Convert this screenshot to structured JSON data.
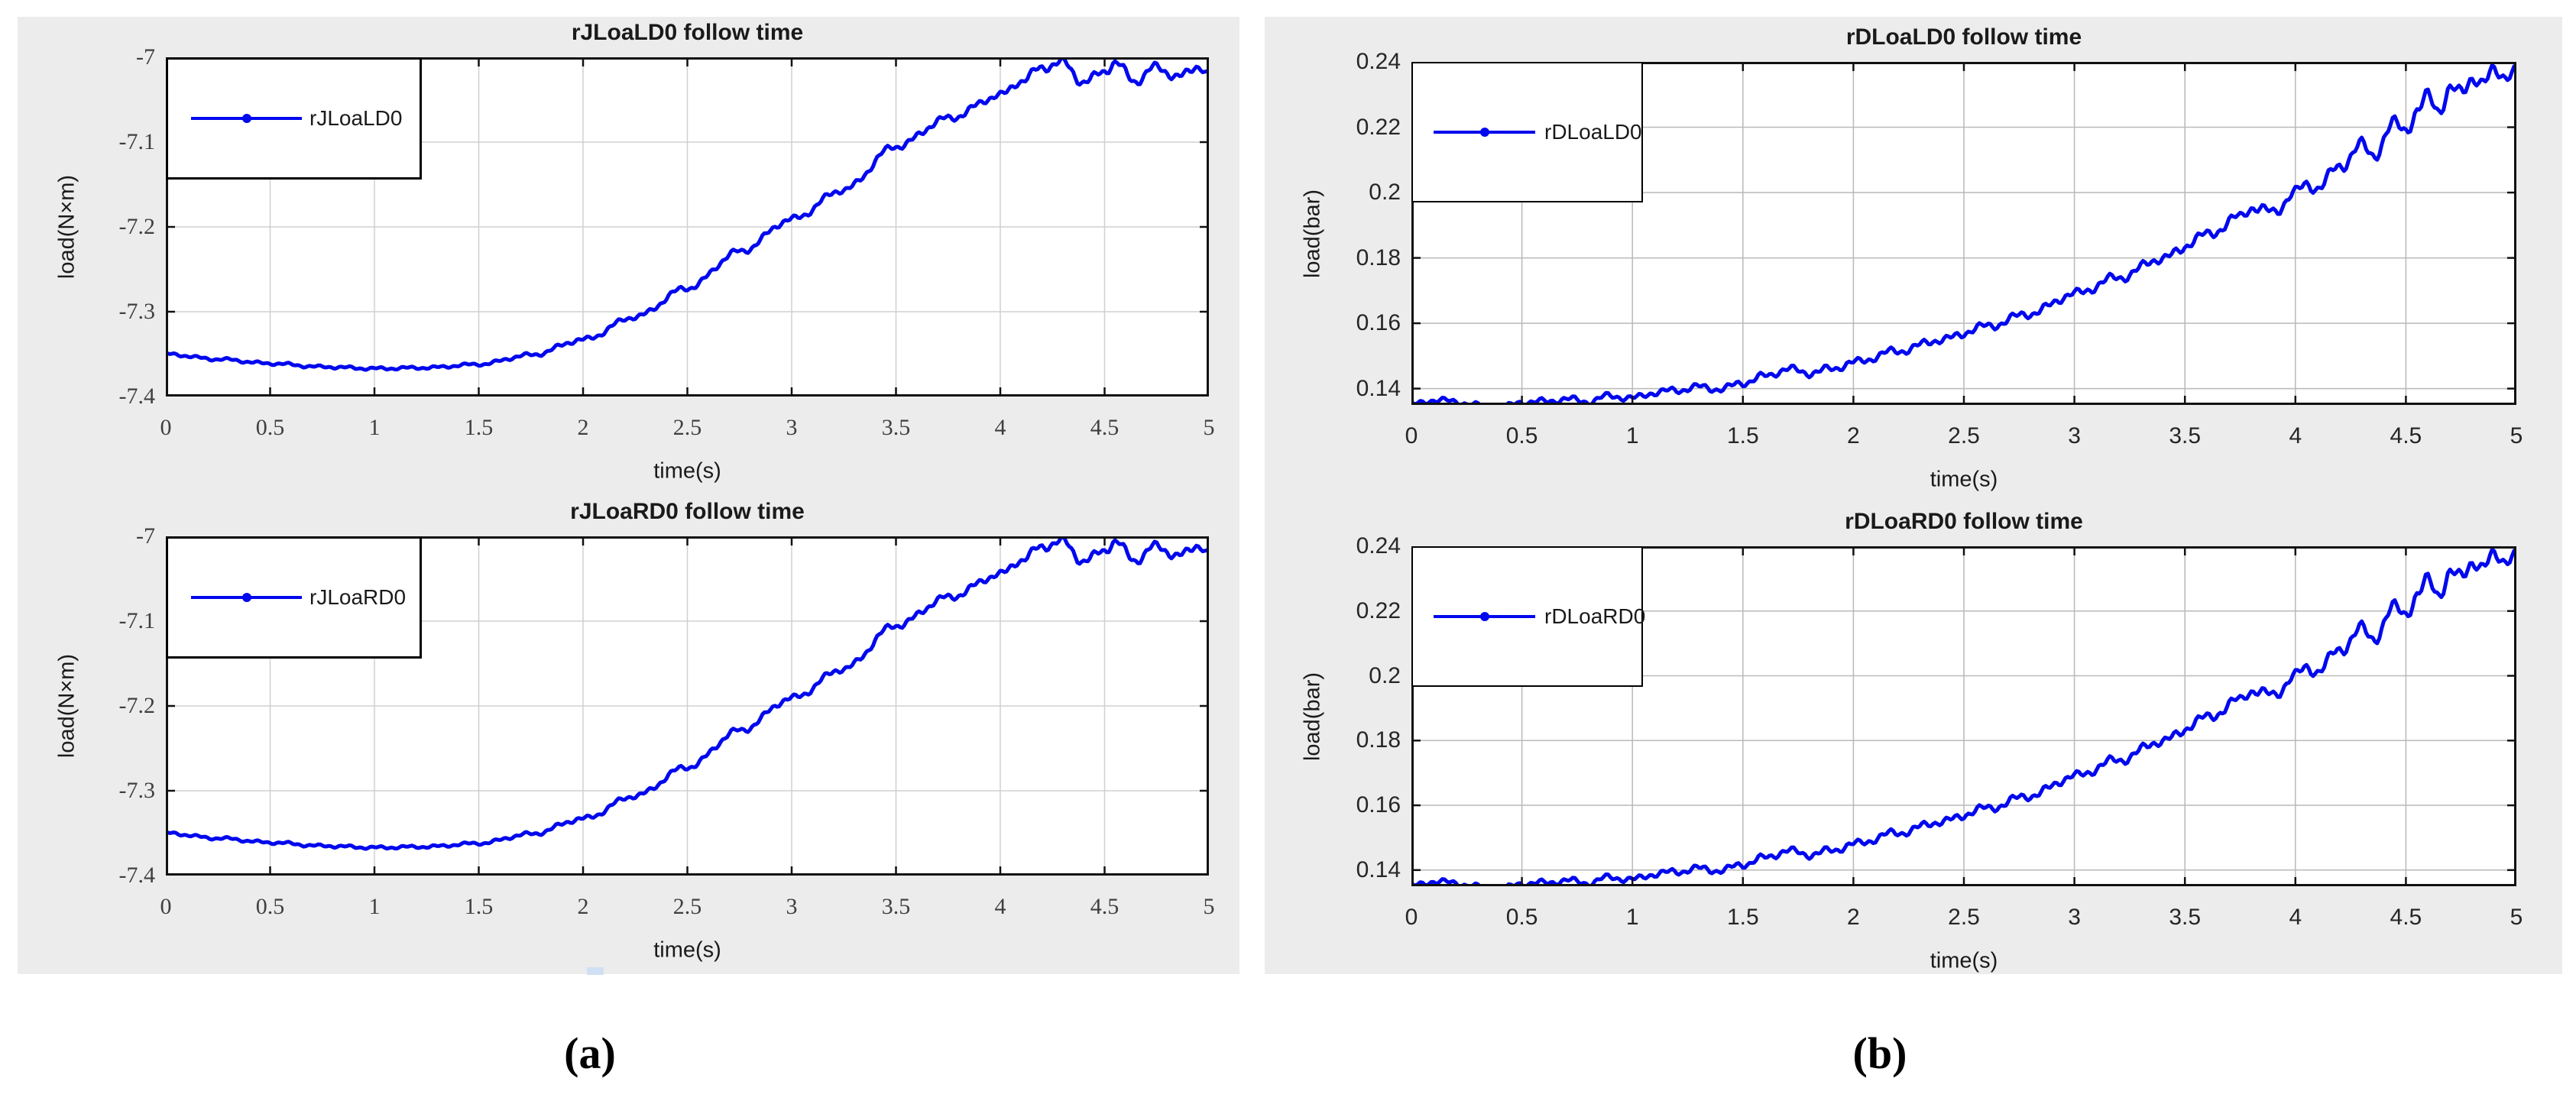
{
  "captions": {
    "a": "(a)",
    "b": "(b)"
  },
  "colors": {
    "panel_bg": "#ececec",
    "page_bg": "#ffffff",
    "axes_border": "#111111",
    "line_blue": "#0008ee",
    "artifact_blue": "#cfe0f2"
  },
  "chart_data": {
    "type": "line",
    "sample_dt": 0.01,
    "legend_position": "top-left",
    "marker": "point",
    "plots": [
      {
        "title": "rJLoaLD0 follow time",
        "legend_label": "rJLoaLD0",
        "xlabel": "time(s)",
        "ylabel": "load(N×m)",
        "xlim": [
          0,
          5
        ],
        "ylim": [
          -7.4,
          -7
        ],
        "xticks": [
          0,
          0.5,
          1,
          1.5,
          2,
          2.5,
          3,
          3.5,
          4,
          4.5,
          5
        ],
        "xtick_labels": [
          "0",
          "0.5",
          "1",
          "1.5",
          "2",
          "2.5",
          "3",
          "3.5",
          "4",
          "4.5",
          "5"
        ],
        "yticks": [
          -7,
          -7.1,
          -7.2,
          -7.3,
          -7.4
        ],
        "ytick_labels": [
          "-7",
          "-7.1",
          "-7.2",
          "-7.3",
          "-7.4"
        ],
        "grid": true,
        "grid_color": "#d0d0d0",
        "tick_font": "serif",
        "line_color": "#0008ee",
        "series": "rJ"
      },
      {
        "title": "rJLoaRD0 follow time",
        "legend_label": "rJLoaRD0",
        "xlabel": "time(s)",
        "ylabel": "load(N×m)",
        "xlim": [
          0,
          5
        ],
        "ylim": [
          -7.4,
          -7
        ],
        "xticks": [
          0,
          0.5,
          1,
          1.5,
          2,
          2.5,
          3,
          3.5,
          4,
          4.5,
          5
        ],
        "xtick_labels": [
          "0",
          "0.5",
          "1",
          "1.5",
          "2",
          "2.5",
          "3",
          "3.5",
          "4",
          "4.5",
          "5"
        ],
        "yticks": [
          -7,
          -7.1,
          -7.2,
          -7.3,
          -7.4
        ],
        "ytick_labels": [
          "-7",
          "-7.1",
          "-7.2",
          "-7.3",
          "-7.4"
        ],
        "grid": true,
        "grid_color": "#d0d0d0",
        "tick_font": "serif",
        "line_color": "#0008ee",
        "series": "rJ"
      },
      {
        "title": "rDLoaLD0 follow time",
        "legend_label": "rDLoaLD0",
        "xlabel": "time(s)",
        "ylabel": "load(bar)",
        "xlim": [
          0,
          5
        ],
        "ylim": [
          0.135,
          0.24
        ],
        "xticks": [
          0,
          0.5,
          1,
          1.5,
          2,
          2.5,
          3,
          3.5,
          4,
          4.5,
          5
        ],
        "xtick_labels": [
          "0",
          "0.5",
          "1",
          "1.5",
          "2",
          "2.5",
          "3",
          "3.5",
          "4",
          "4.5",
          "5"
        ],
        "yticks": [
          0.24,
          0.22,
          0.2,
          0.18,
          0.16,
          0.14
        ],
        "ytick_labels": [
          "0.24",
          "0.22",
          "0.2",
          "0.18",
          "0.16",
          "0.14"
        ],
        "grid": true,
        "grid_color": "#b9b9b9",
        "tick_font": "sans",
        "line_color": "#0008ee",
        "series": "rD"
      },
      {
        "title": "rDLoaRD0 follow time",
        "legend_label": "rDLoaRD0",
        "xlabel": "time(s)",
        "ylabel": "load(bar)",
        "xlim": [
          0,
          5
        ],
        "ylim": [
          0.135,
          0.24
        ],
        "xticks": [
          0,
          0.5,
          1,
          1.5,
          2,
          2.5,
          3,
          3.5,
          4,
          4.5,
          5
        ],
        "xtick_labels": [
          "0",
          "0.5",
          "1",
          "1.5",
          "2",
          "2.5",
          "3",
          "3.5",
          "4",
          "4.5",
          "5"
        ],
        "yticks": [
          0.24,
          0.22,
          0.2,
          0.18,
          0.16,
          0.14
        ],
        "ytick_labels": [
          "0.24",
          "0.22",
          "0.2",
          "0.18",
          "0.16",
          "0.14"
        ],
        "grid": true,
        "grid_color": "#b9b9b9",
        "tick_font": "sans",
        "line_color": "#0008ee",
        "series": "rD"
      }
    ],
    "series": {
      "rJ": {
        "keypoints": [
          [
            0,
            -7.35
          ],
          [
            0.25,
            -7.356
          ],
          [
            0.5,
            -7.361
          ],
          [
            0.75,
            -7.365
          ],
          [
            1,
            -7.367
          ],
          [
            1.25,
            -7.366
          ],
          [
            1.5,
            -7.362
          ],
          [
            1.75,
            -7.351
          ],
          [
            2,
            -7.333
          ],
          [
            2.25,
            -7.306
          ],
          [
            2.5,
            -7.272
          ],
          [
            2.75,
            -7.229
          ],
          [
            3,
            -7.191
          ],
          [
            3.25,
            -7.156
          ],
          [
            3.5,
            -7.105
          ],
          [
            3.75,
            -7.072
          ],
          [
            4,
            -7.045
          ],
          [
            4.1,
            -7.028
          ],
          [
            4.2,
            -7.012
          ],
          [
            4.3,
            -7.006
          ],
          [
            4.4,
            -7.03
          ],
          [
            4.5,
            -7.016
          ],
          [
            4.55,
            -7.007
          ],
          [
            4.65,
            -7.028
          ],
          [
            4.75,
            -7.011
          ],
          [
            4.85,
            -7.024
          ],
          [
            4.95,
            -7.01
          ],
          [
            5,
            -7.022
          ]
        ],
        "wiggle": {
          "amp": [
            [
              0,
              0.002
            ],
            [
              1.5,
              0.002
            ],
            [
              2,
              0.0035
            ],
            [
              3,
              0.0045
            ],
            [
              4,
              0.005
            ],
            [
              4.2,
              0.006
            ],
            [
              5,
              0.006
            ]
          ],
          "freqs": [
            44,
            127
          ],
          "phases": [
            0.9,
            2.3
          ]
        }
      },
      "rD": {
        "keypoints": [
          [
            0,
            0.135
          ],
          [
            0.1,
            0.1365
          ],
          [
            0.2,
            0.136
          ],
          [
            0.3,
            0.1348
          ],
          [
            0.4,
            0.1338
          ],
          [
            0.5,
            0.1358
          ],
          [
            0.6,
            0.136
          ],
          [
            0.7,
            0.1368
          ],
          [
            0.8,
            0.136
          ],
          [
            0.9,
            0.1378
          ],
          [
            1,
            0.137
          ],
          [
            1.1,
            0.1388
          ],
          [
            1.2,
            0.1395
          ],
          [
            1.3,
            0.1405
          ],
          [
            1.4,
            0.1398
          ],
          [
            1.5,
            0.1418
          ],
          [
            1.6,
            0.1438
          ],
          [
            1.7,
            0.146
          ],
          [
            1.8,
            0.1448
          ],
          [
            1.9,
            0.146
          ],
          [
            2,
            0.148
          ],
          [
            2.2,
            0.1515
          ],
          [
            2.4,
            0.155
          ],
          [
            2.6,
            0.159
          ],
          [
            2.8,
            0.163
          ],
          [
            3,
            0.169
          ],
          [
            3.2,
            0.174
          ],
          [
            3.4,
            0.18
          ],
          [
            3.6,
            0.187
          ],
          [
            3.75,
            0.1925
          ],
          [
            3.8,
            0.1955
          ],
          [
            3.9,
            0.194
          ],
          [
            4,
            0.2
          ],
          [
            4.05,
            0.2025
          ],
          [
            4.1,
            0.2015
          ],
          [
            4.2,
            0.208
          ],
          [
            4.3,
            0.2145
          ],
          [
            4.35,
            0.2115
          ],
          [
            4.45,
            0.221
          ],
          [
            4.5,
            0.2195
          ],
          [
            4.55,
            0.2245
          ],
          [
            4.6,
            0.2295
          ],
          [
            4.65,
            0.2255
          ],
          [
            4.7,
            0.2315
          ],
          [
            4.75,
            0.2305
          ],
          [
            4.8,
            0.2355
          ],
          [
            4.85,
            0.233
          ],
          [
            4.9,
            0.2375
          ],
          [
            4.95,
            0.236
          ],
          [
            5,
            0.237
          ]
        ],
        "wiggle": {
          "amp": [
            [
              0,
              0.0011
            ],
            [
              1,
              0.0012
            ],
            [
              2,
              0.0014
            ],
            [
              3,
              0.0016
            ],
            [
              4,
              0.002
            ],
            [
              4.5,
              0.0026
            ],
            [
              5,
              0.0024
            ]
          ],
          "freqs": [
            44,
            127
          ],
          "phases": [
            0.9,
            2.3
          ]
        }
      }
    }
  }
}
